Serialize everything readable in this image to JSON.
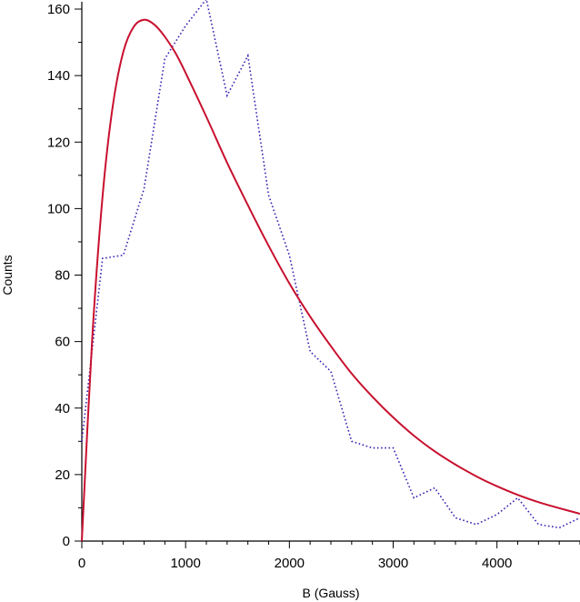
{
  "chart_data": {
    "type": "line",
    "title": "",
    "xlabel": "B (Gauss)",
    "ylabel": "Counts",
    "xlim": [
      0,
      4800
    ],
    "ylim": [
      0,
      160
    ],
    "xticks": [
      0,
      1000,
      2000,
      3000,
      4000
    ],
    "yticks": [
      0,
      20,
      40,
      60,
      80,
      100,
      120,
      140,
      160
    ],
    "grid": false,
    "legend": "none",
    "series": [
      {
        "style": "dotted",
        "color": "#3a1fb0",
        "x": [
          0,
          200,
          400,
          600,
          800,
          1000,
          1200,
          1400,
          1600,
          1800,
          2000,
          2200,
          2400,
          2600,
          2800,
          3000,
          3200,
          3400,
          3600,
          3800,
          4000,
          4200,
          4400,
          4600,
          4800
        ],
        "y": [
          30,
          85,
          86,
          106,
          145,
          155,
          163,
          134,
          146,
          104,
          86,
          57,
          51,
          30,
          28,
          28,
          13,
          16,
          7,
          5,
          8,
          13,
          5,
          4,
          7
        ]
      },
      {
        "style": "solid",
        "color": "#c8102e",
        "x": [
          0,
          100,
          200,
          300,
          400,
          500,
          600,
          700,
          800,
          900,
          1000,
          1200,
          1400,
          1600,
          1800,
          2000,
          2200,
          2400,
          2600,
          2800,
          3000,
          3200,
          3400,
          3600,
          3800,
          4000,
          4200,
          4400,
          4600,
          4800
        ],
        "y": [
          0,
          60.7,
          103.6,
          131.3,
          147.2,
          154.7,
          156.8,
          155.3,
          151.7,
          146.9,
          140.8,
          127.6,
          113.8,
          101.0,
          88.8,
          77.5,
          67.5,
          58.6,
          50.4,
          43.4,
          37.2,
          31.7,
          27.0,
          23.0,
          19.5,
          16.5,
          13.9,
          11.7,
          9.9,
          8.2
        ]
      }
    ]
  }
}
